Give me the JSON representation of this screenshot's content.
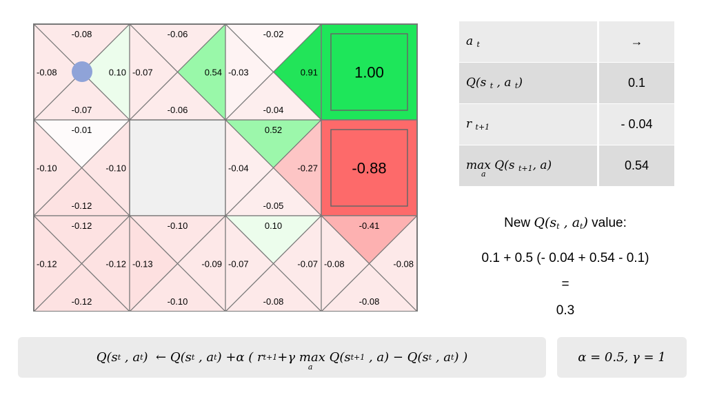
{
  "grid": {
    "cells": [
      {
        "row": 0,
        "col": 0,
        "type": "state",
        "q": {
          "up": "-0.08",
          "right": "0.10",
          "down": "-0.07",
          "left": "-0.08"
        },
        "fill": {
          "up": "#fde9e9",
          "right": "#ecfdec",
          "down": "#fde9e9",
          "left": "#fde9e9"
        },
        "agent": true
      },
      {
        "row": 0,
        "col": 1,
        "type": "state",
        "q": {
          "up": "-0.06",
          "right": "0.54",
          "down": "-0.06",
          "left": "-0.07"
        },
        "fill": {
          "up": "#fdebeb",
          "right": "#99f8a9",
          "down": "#fdebeb",
          "left": "#fdeaea"
        }
      },
      {
        "row": 0,
        "col": 2,
        "type": "state",
        "q": {
          "up": "-0.02",
          "right": "0.91",
          "down": "-0.04",
          "left": "-0.03"
        },
        "fill": {
          "up": "#fff6f6",
          "right": "#22e459",
          "down": "#fdeeee",
          "left": "#fef3f3"
        }
      },
      {
        "row": 0,
        "col": 3,
        "type": "terminal",
        "value": "1.00",
        "fill": "#1ee65a"
      },
      {
        "row": 1,
        "col": 0,
        "type": "state",
        "q": {
          "up": "-0.01",
          "right": "-0.10",
          "down": "-0.12",
          "left": "-0.10"
        },
        "fill": {
          "up": "#fefbfb",
          "right": "#fde6e6",
          "down": "#fde2e2",
          "left": "#fde6e6"
        }
      },
      {
        "row": 1,
        "col": 1,
        "type": "wall",
        "fill": "#f0f0f0"
      },
      {
        "row": 1,
        "col": 2,
        "type": "state",
        "q": {
          "up": "0.52",
          "right": "-0.27",
          "down": "-0.05",
          "left": "-0.04"
        },
        "fill": {
          "up": "#9cf7ab",
          "right": "#fdc5c5",
          "down": "#fdeded",
          "left": "#fdeeee"
        }
      },
      {
        "row": 1,
        "col": 3,
        "type": "terminal",
        "value": "-0.88",
        "fill": "#fd6a6a"
      },
      {
        "row": 2,
        "col": 0,
        "type": "state",
        "q": {
          "up": "-0.12",
          "right": "-0.12",
          "down": "-0.12",
          "left": "-0.12"
        },
        "fill": {
          "up": "#fde2e2",
          "right": "#fde2e2",
          "down": "#fde2e2",
          "left": "#fde2e2"
        }
      },
      {
        "row": 2,
        "col": 1,
        "type": "state",
        "q": {
          "up": "-0.10",
          "right": "-0.09",
          "down": "-0.10",
          "left": "-0.13"
        },
        "fill": {
          "up": "#fde6e6",
          "right": "#fde8e8",
          "down": "#fde6e6",
          "left": "#fde0e0"
        }
      },
      {
        "row": 2,
        "col": 2,
        "type": "state",
        "q": {
          "up": "0.10",
          "right": "-0.07",
          "down": "-0.08",
          "left": "-0.07"
        },
        "fill": {
          "up": "#ecfdec",
          "right": "#fdeaea",
          "down": "#fde9e9",
          "left": "#fdeaea"
        }
      },
      {
        "row": 2,
        "col": 3,
        "type": "state",
        "q": {
          "up": "-0.41",
          "right": "-0.08",
          "down": "-0.08",
          "left": "-0.08"
        },
        "fill": {
          "up": "#fdb1b1",
          "right": "#fde9e9",
          "down": "#fde9e9",
          "left": "#fde9e9"
        }
      }
    ],
    "agent_color": "#8fa3d8"
  },
  "table": {
    "rows": [
      {
        "label_main": "a",
        "label_sub": "t",
        "value": "→"
      },
      {
        "label_main": "Q(s",
        "label_sub": "t",
        "label_rest": ", a",
        "label_sub2": "t",
        "label_end": ")",
        "value": "0.1"
      },
      {
        "label_main": "r",
        "label_sub": "t+1",
        "value": "- 0.04"
      },
      {
        "label_main": "max",
        "label_under": "a",
        "label_rest": " Q(s",
        "label_sub": "t+1",
        "label_end": ", a)",
        "value": "0.54"
      }
    ]
  },
  "calc": {
    "new_prefix": "New",
    "new_suffix": "value:",
    "expression": "0.1 + 0.5 (- 0.04 + 0.54 - 0.1)",
    "equals": "=",
    "result": "0.3"
  },
  "formula": {
    "text_left": "Q(s",
    "arrow": "←",
    "alpha": "α",
    "gamma": "γ",
    "max": "max",
    "max_under": "a"
  },
  "params": {
    "text": "α = 0.5,  γ = 1"
  }
}
